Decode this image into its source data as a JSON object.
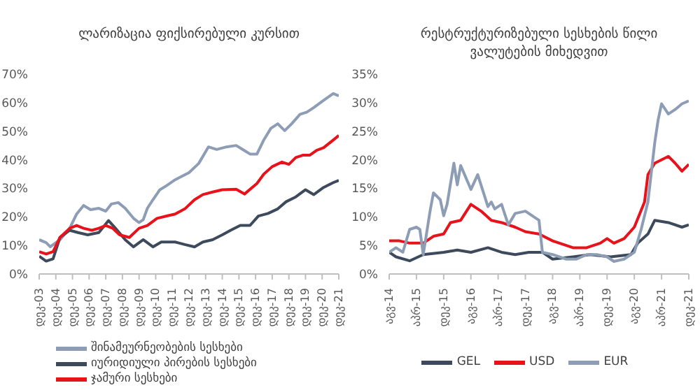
{
  "chart_data": [
    {
      "type": "line",
      "title": "ლარიზაცია ფიქსირებული კურსით",
      "legend": "bottom",
      "xlim": [
        "2003-12",
        "2021-12"
      ],
      "xticks": [
        {
          "value": "2003-12",
          "label": "დეკ-03"
        },
        {
          "value": "2004-12",
          "label": "დეკ-04"
        },
        {
          "value": "2005-12",
          "label": "დეკ-05"
        },
        {
          "value": "2006-12",
          "label": "დეკ-06"
        },
        {
          "value": "2007-12",
          "label": "დეკ-07"
        },
        {
          "value": "2008-12",
          "label": "დეკ-08"
        },
        {
          "value": "2009-12",
          "label": "დეკ-09"
        },
        {
          "value": "2010-12",
          "label": "დეკ-10"
        },
        {
          "value": "2011-12",
          "label": "დეკ-11"
        },
        {
          "value": "2012-12",
          "label": "დეკ-12"
        },
        {
          "value": "2013-12",
          "label": "დეკ-13"
        },
        {
          "value": "2014-12",
          "label": "დეკ-14"
        },
        {
          "value": "2015-12",
          "label": "დეკ-15"
        },
        {
          "value": "2016-12",
          "label": "დეკ-16"
        },
        {
          "value": "2017-12",
          "label": "დეკ-17"
        },
        {
          "value": "2018-12",
          "label": "დეკ-18"
        },
        {
          "value": "2019-12",
          "label": "დეკ-19"
        },
        {
          "value": "2020-12",
          "label": "დეკ-20"
        },
        {
          "value": "2021-12",
          "label": "დეკ-21"
        }
      ],
      "ylim": [
        0,
        70
      ],
      "yticks": [
        {
          "value": 0,
          "label": "0%"
        },
        {
          "value": 10,
          "label": "10%"
        },
        {
          "value": 20,
          "label": "20%"
        },
        {
          "value": 30,
          "label": "30%"
        },
        {
          "value": 40,
          "label": "40%"
        },
        {
          "value": 50,
          "label": "50%"
        },
        {
          "value": 60,
          "label": "60%"
        },
        {
          "value": 70,
          "label": "70%"
        }
      ],
      "series": [
        {
          "name": "შინამეურნეობების სესხები",
          "color": "#8d9db6",
          "x": [
            "2003-12",
            "2004-05",
            "2004-08",
            "2005-03",
            "2005-10",
            "2006-03",
            "2006-08",
            "2007-01",
            "2007-07",
            "2007-12",
            "2008-04",
            "2008-09",
            "2009-02",
            "2009-08",
            "2009-12",
            "2010-03",
            "2010-06",
            "2010-10",
            "2011-03",
            "2011-08",
            "2012-02",
            "2012-12",
            "2013-07",
            "2014-02",
            "2014-08",
            "2015-03",
            "2015-10",
            "2016-03",
            "2016-08",
            "2017-01",
            "2017-06",
            "2017-11",
            "2018-04",
            "2018-09",
            "2019-02",
            "2019-08",
            "2020-01",
            "2020-06",
            "2021-01",
            "2021-08",
            "2021-12"
          ],
          "values": [
            12,
            11,
            9.5,
            12,
            16,
            21,
            24,
            22.5,
            23,
            22,
            24.5,
            25,
            23,
            19.5,
            18,
            19,
            23,
            26,
            29.5,
            31,
            33,
            35.5,
            38.7,
            44.5,
            43.6,
            44.5,
            45,
            43.5,
            42,
            42,
            47,
            51,
            52.6,
            50.2,
            52.6,
            55.9,
            56.7,
            58.3,
            60.8,
            63.2,
            62.4
          ]
        },
        {
          "name": "იურიდიული პირების სესხები",
          "color": "#3d4a5c",
          "x": [
            "2003-12",
            "2004-05",
            "2004-10",
            "2005-03",
            "2005-10",
            "2006-04",
            "2006-11",
            "2007-07",
            "2008-02",
            "2008-07",
            "2009-02",
            "2009-08",
            "2010-03",
            "2010-10",
            "2011-04",
            "2012-02",
            "2012-09",
            "2013-04",
            "2013-10",
            "2014-05",
            "2014-12",
            "2015-06",
            "2016-01",
            "2016-08",
            "2017-02",
            "2017-09",
            "2018-04",
            "2018-10",
            "2019-05",
            "2019-12",
            "2020-06",
            "2021-01",
            "2021-08",
            "2021-12"
          ],
          "values": [
            6.2,
            4.5,
            5.3,
            12.8,
            15.3,
            14.5,
            13.7,
            14.5,
            18.7,
            16,
            12,
            9.5,
            12,
            9.5,
            11.2,
            11.2,
            10.3,
            9.5,
            11.2,
            12,
            13.7,
            15.3,
            17,
            17,
            20.3,
            21.2,
            22.8,
            25.3,
            27,
            29.5,
            27.8,
            30.3,
            32,
            32.8
          ]
        },
        {
          "name": "ჯამური სესხები",
          "color": "#e8121b",
          "x": [
            "2003-12",
            "2004-05",
            "2004-10",
            "2005-03",
            "2005-10",
            "2006-03",
            "2006-08",
            "2007-02",
            "2007-07",
            "2007-12",
            "2008-05",
            "2008-10",
            "2009-05",
            "2009-12",
            "2010-06",
            "2011-01",
            "2011-08",
            "2012-02",
            "2012-09",
            "2013-04",
            "2013-10",
            "2014-05",
            "2014-12",
            "2015-10",
            "2016-04",
            "2017-01",
            "2017-06",
            "2017-12",
            "2018-07",
            "2018-12",
            "2019-05",
            "2019-10",
            "2020-03",
            "2020-08",
            "2021-01",
            "2021-08",
            "2021-12"
          ],
          "values": [
            7.8,
            7,
            7.8,
            12.8,
            16,
            17,
            16,
            15.3,
            16,
            17,
            16,
            13.7,
            12.8,
            16,
            17,
            19.5,
            20.3,
            21,
            22.8,
            26,
            27.8,
            28.7,
            29.5,
            29.7,
            28,
            31.7,
            35,
            37.6,
            39.2,
            38.4,
            40.8,
            41.6,
            41.6,
            43.3,
            44.2,
            46.9,
            48.5
          ]
        }
      ]
    },
    {
      "type": "line",
      "title": "რესტრუქტურიზებული სესხების წილი ვალუტების მიხედვით",
      "legend": "bottom",
      "xlim": [
        "2014-08",
        "2021-12"
      ],
      "xticks": [
        {
          "value": "2014-08",
          "label": "აგვ-14"
        },
        {
          "value": "2015-04",
          "label": "აპრ-15"
        },
        {
          "value": "2015-12",
          "label": "დეკ-15"
        },
        {
          "value": "2016-08",
          "label": "აგვ-16"
        },
        {
          "value": "2017-04",
          "label": "აპრ-17"
        },
        {
          "value": "2017-12",
          "label": "დეკ-17"
        },
        {
          "value": "2018-08",
          "label": "აგვ-18"
        },
        {
          "value": "2019-04",
          "label": "აპრ-19"
        },
        {
          "value": "2019-12",
          "label": "დეკ-19"
        },
        {
          "value": "2020-08",
          "label": "აგვ-20"
        },
        {
          "value": "2021-04",
          "label": "აპრ-21"
        },
        {
          "value": "2021-12",
          "label": "დეკ-21"
        }
      ],
      "ylim": [
        0,
        35
      ],
      "yticks": [
        {
          "value": 0,
          "label": "0%"
        },
        {
          "value": 5,
          "label": "5%"
        },
        {
          "value": 10,
          "label": "10%"
        },
        {
          "value": 15,
          "label": "15%"
        },
        {
          "value": 20,
          "label": "20%"
        },
        {
          "value": 25,
          "label": "25%"
        },
        {
          "value": 30,
          "label": "30%"
        },
        {
          "value": 35,
          "label": "35%"
        }
      ],
      "series": [
        {
          "name": "GEL",
          "color": "#3d4a5c",
          "x": [
            "2014-08",
            "2014-10",
            "2015-02",
            "2015-06",
            "2015-12",
            "2016-04",
            "2016-08",
            "2017-01",
            "2017-05",
            "2017-09",
            "2018-01",
            "2018-05",
            "2018-08",
            "2019-02",
            "2019-07",
            "2020-01",
            "2020-07",
            "2020-09",
            "2020-12",
            "2021-02",
            "2021-06",
            "2021-10",
            "2021-12"
          ],
          "values": [
            3.8,
            3,
            2.3,
            3.4,
            3.8,
            4.2,
            3.8,
            4.6,
            3.8,
            3.4,
            3.8,
            3.8,
            2.6,
            3,
            3.4,
            3,
            3.4,
            5.4,
            7,
            9.4,
            9,
            8.2,
            8.6
          ]
        },
        {
          "name": "USD",
          "color": "#e8121b",
          "x": [
            "2014-08",
            "2014-11",
            "2015-02",
            "2015-06",
            "2015-09",
            "2015-12",
            "2016-02",
            "2016-05",
            "2016-08",
            "2016-11",
            "2017-02",
            "2017-05",
            "2017-09",
            "2017-12",
            "2018-04",
            "2018-08",
            "2019-02",
            "2019-06",
            "2019-10",
            "2019-12",
            "2020-02",
            "2020-05",
            "2020-08",
            "2020-11",
            "2020-12",
            "2021-02",
            "2021-06",
            "2021-08",
            "2021-10",
            "2021-12"
          ],
          "values": [
            5.8,
            5.8,
            5.4,
            5.4,
            6.6,
            7,
            9,
            9.4,
            12.2,
            11,
            9.4,
            9,
            8.2,
            7.4,
            7,
            5.8,
            4.6,
            4.6,
            5.4,
            6.2,
            5.4,
            6.2,
            8.2,
            12.6,
            17.4,
            19.4,
            20.6,
            19.4,
            18,
            19.2
          ]
        },
        {
          "name": "EUR",
          "color": "#8d9db6",
          "x": [
            "2014-08",
            "2014-10",
            "2014-12",
            "2015-02",
            "2015-04",
            "2015-05",
            "2015-06",
            "2015-08",
            "2015-09",
            "2015-11",
            "2015-12",
            "2016-01",
            "2016-03",
            "2016-04",
            "2016-05",
            "2016-08",
            "2016-10",
            "2017-01",
            "2017-02",
            "2017-03",
            "2017-05",
            "2017-07",
            "2017-09",
            "2017-12",
            "2018-04",
            "2018-05",
            "2018-08",
            "2018-12",
            "2019-03",
            "2019-06",
            "2019-09",
            "2019-12",
            "2020-02",
            "2020-05",
            "2020-08",
            "2020-10",
            "2020-12",
            "2021-02",
            "2021-03",
            "2021-04",
            "2021-06",
            "2021-08",
            "2021-10",
            "2021-12"
          ],
          "values": [
            3.8,
            4.6,
            3.8,
            7.8,
            8.2,
            7.8,
            3.4,
            11,
            14.2,
            13,
            10.2,
            12.2,
            19.4,
            15.6,
            19,
            14.8,
            17.4,
            11.8,
            12.6,
            11.4,
            12.2,
            8.6,
            10.6,
            11,
            9.4,
            3.8,
            3.4,
            2.6,
            2.6,
            3.4,
            3.4,
            3,
            2.2,
            2.6,
            3.8,
            7.8,
            12.6,
            23,
            27,
            29.8,
            28,
            28.8,
            29.8,
            30.3
          ]
        }
      ]
    }
  ]
}
